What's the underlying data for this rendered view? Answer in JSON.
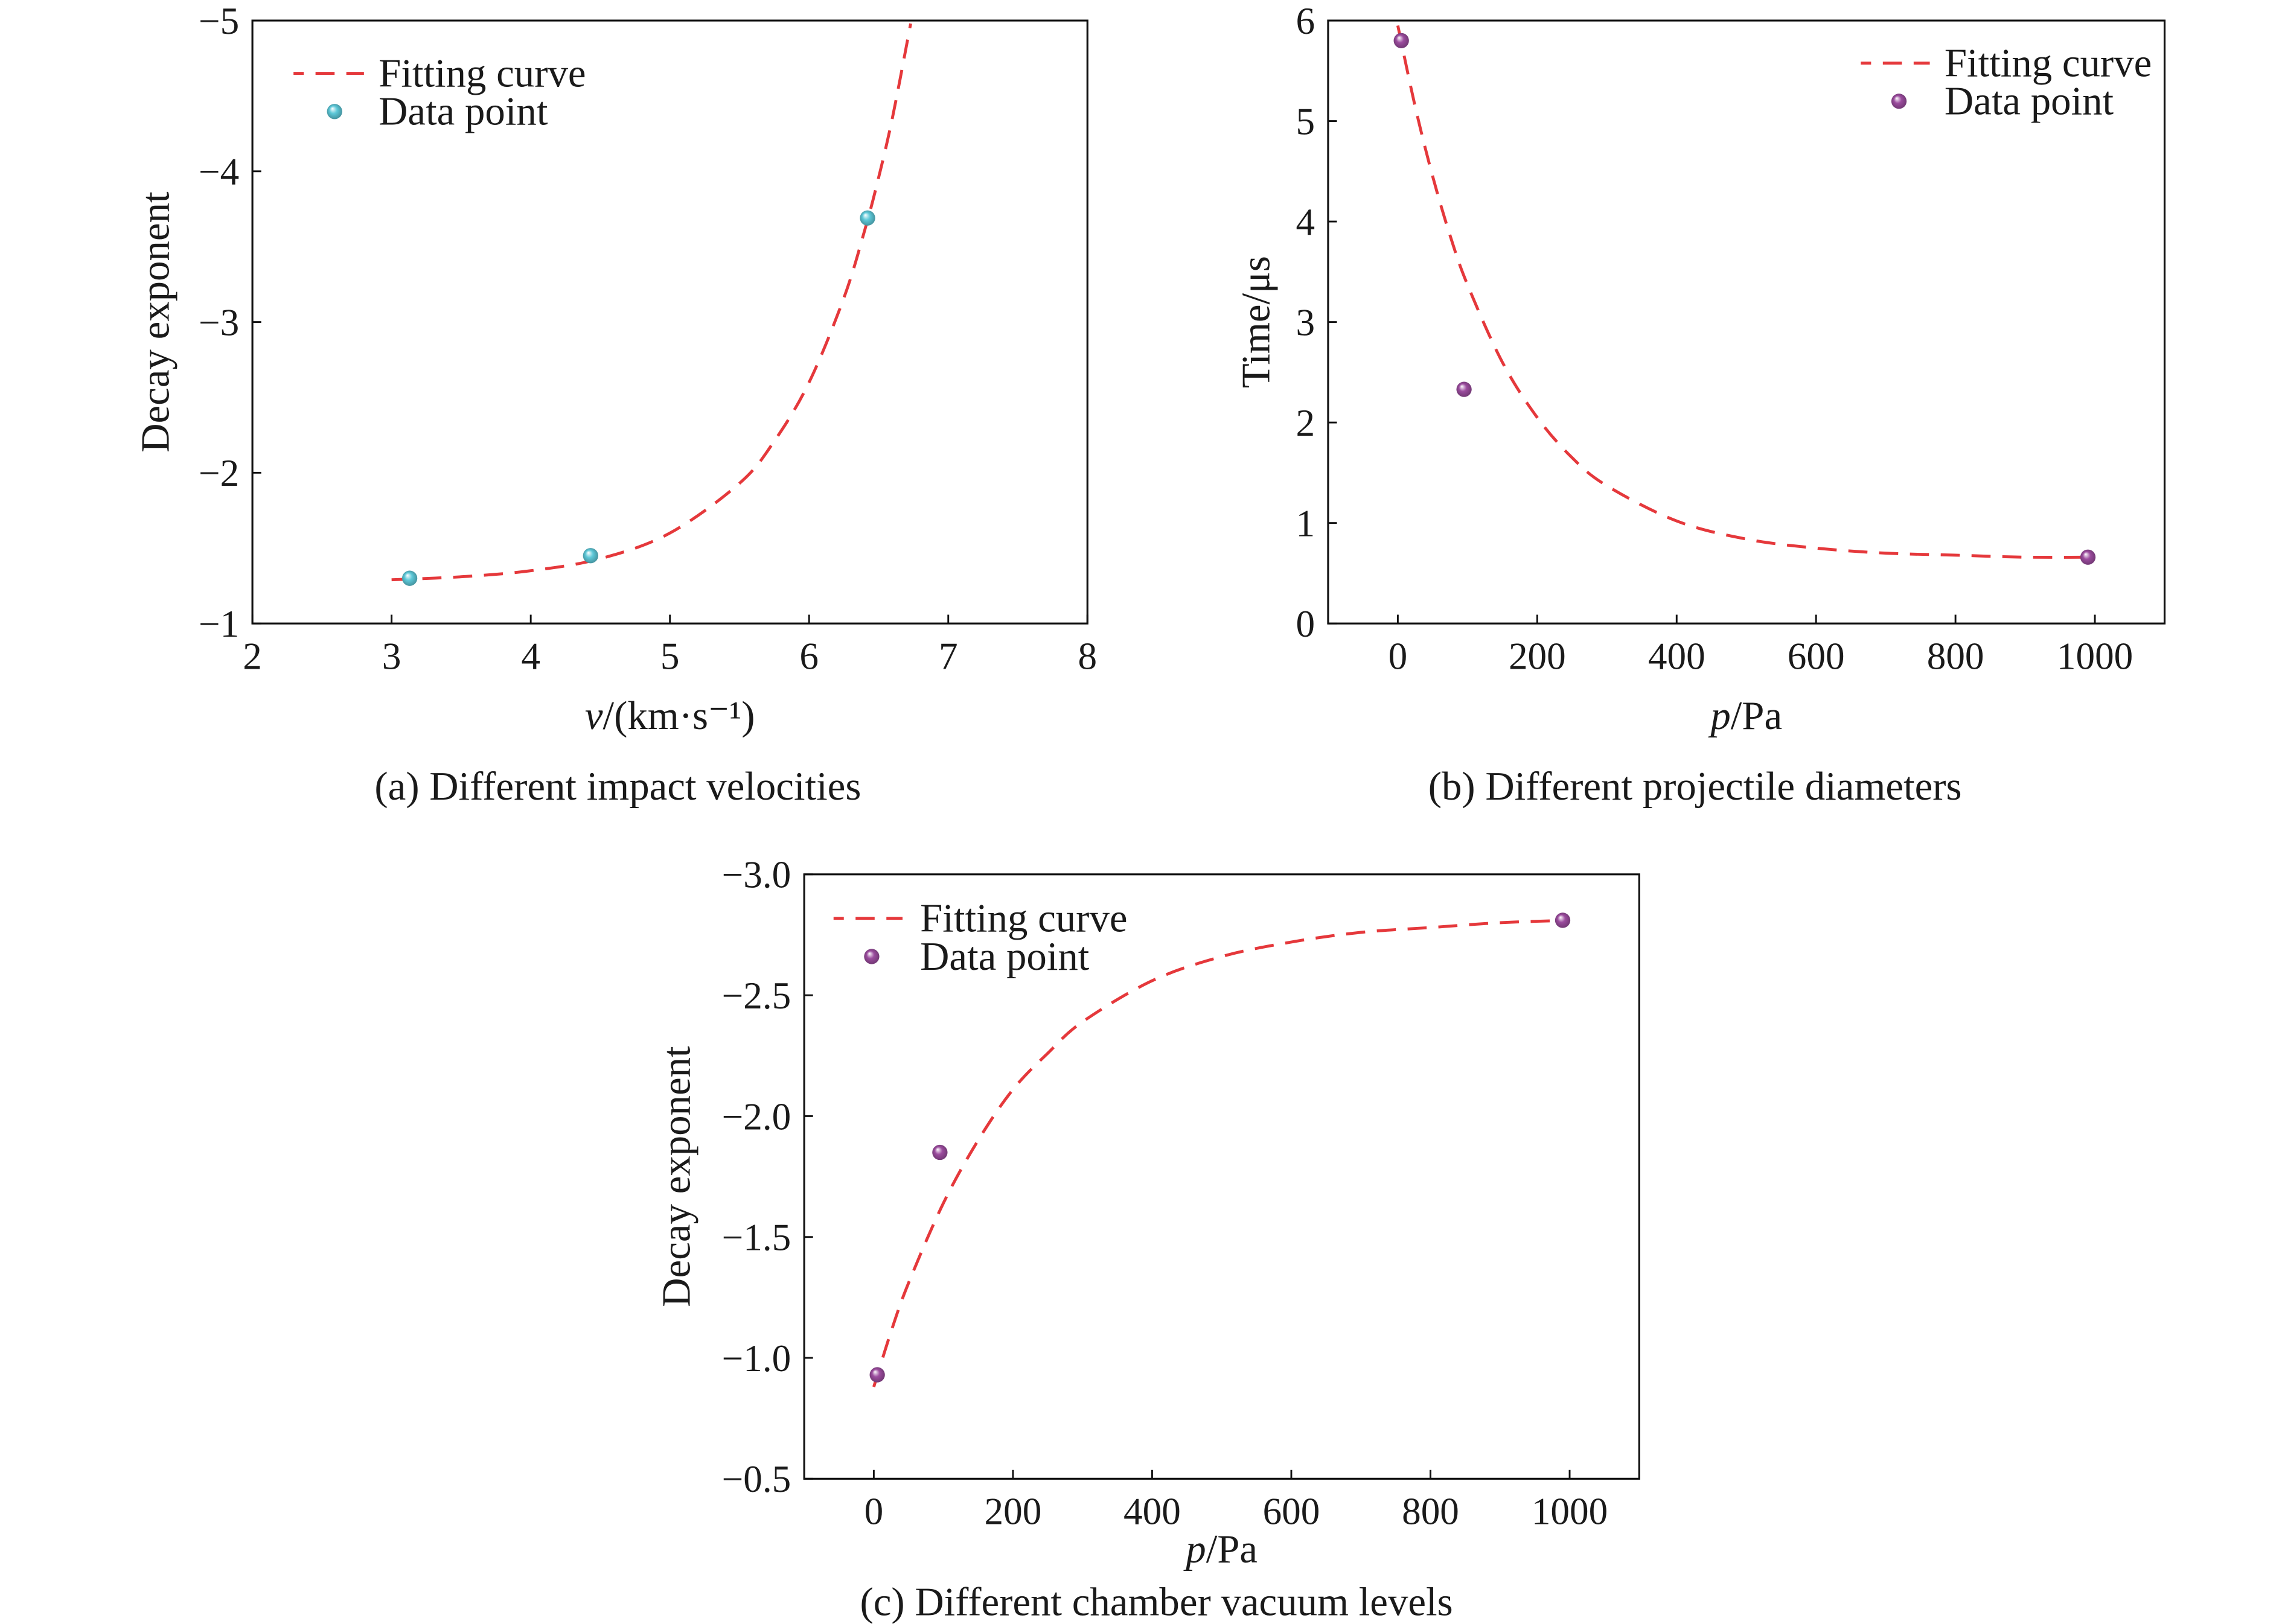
{
  "chart_data": [
    {
      "type": "scatter",
      "caption": "(a) Different impact velocities",
      "xlabel": {
        "italic": "v",
        "rest": "/(km·s⁻¹)"
      },
      "ylabel": "Decay exponent",
      "xlim": [
        2,
        8
      ],
      "ylim": [
        -1,
        -5
      ],
      "y_inverted": true,
      "x_ticks": [
        2,
        3,
        4,
        5,
        6,
        7,
        8
      ],
      "x_tick_labels": [
        "2",
        "3",
        "4",
        "5",
        "6",
        "7",
        "8"
      ],
      "y_ticks": [
        -5,
        -4,
        -3,
        -2,
        -1
      ],
      "y_tick_labels": [
        "−5",
        "−4",
        "−3",
        "−2",
        "−1"
      ],
      "grid": false,
      "legend": "top-left",
      "series": [
        {
          "name": "Fitting curve",
          "style": "dashed-line",
          "color": "#e5383b",
          "x": [
            3.0,
            3.5,
            4.0,
            4.5,
            5.0,
            5.5,
            5.75,
            6.0,
            6.25,
            6.4,
            6.5,
            6.6,
            6.73
          ],
          "y": [
            -1.29,
            -1.31,
            -1.35,
            -1.43,
            -1.6,
            -1.93,
            -2.21,
            -2.6,
            -3.16,
            -3.61,
            -3.96,
            -4.36,
            -4.98
          ]
        },
        {
          "name": "Data point",
          "style": "marker",
          "color": "#5dc8d8",
          "x": [
            3.13,
            4.43,
            6.42
          ],
          "y": [
            -1.3,
            -1.45,
            -3.69
          ]
        }
      ]
    },
    {
      "type": "scatter",
      "caption": "(b) Different projectile diameters",
      "xlabel": {
        "italic": "p",
        "rest": "/Pa"
      },
      "ylabel": "Time/μs",
      "xlim": [
        -100,
        1100
      ],
      "ylim": [
        0,
        6
      ],
      "y_inverted": false,
      "x_ticks": [
        0,
        200,
        400,
        600,
        800,
        1000
      ],
      "x_tick_labels": [
        "0",
        "200",
        "400",
        "600",
        "800",
        "1000"
      ],
      "y_ticks": [
        0,
        1,
        2,
        3,
        4,
        5,
        6
      ],
      "y_tick_labels": [
        "0",
        "1",
        "2",
        "3",
        "4",
        "5",
        "6"
      ],
      "grid": false,
      "legend": "top-right",
      "series": [
        {
          "name": "Fitting curve",
          "style": "dashed-line",
          "color": "#e5383b",
          "x": [
            0,
            25,
            50,
            75,
            100,
            150,
            200,
            250,
            300,
            400,
            500,
            600,
            700,
            800,
            900,
            1000
          ],
          "y": [
            5.95,
            5.14,
            4.45,
            3.86,
            3.37,
            2.6,
            2.05,
            1.65,
            1.37,
            1.02,
            0.84,
            0.75,
            0.7,
            0.68,
            0.66,
            0.66
          ]
        },
        {
          "name": "Data point",
          "style": "marker",
          "color": "#9b4c9e",
          "x": [
            5,
            95,
            990
          ],
          "y": [
            5.8,
            2.33,
            0.66
          ]
        }
      ]
    },
    {
      "type": "scatter",
      "caption": "(c) Different chamber vacuum levels",
      "xlabel": {
        "italic": "p",
        "rest": "/Pa"
      },
      "ylabel": "Decay exponent",
      "xlim": [
        -100,
        1100
      ],
      "ylim": [
        -0.5,
        -3.0
      ],
      "y_inverted": true,
      "x_ticks": [
        0,
        200,
        400,
        600,
        800,
        1000
      ],
      "x_tick_labels": [
        "0",
        "200",
        "400",
        "600",
        "800",
        "1000"
      ],
      "y_ticks": [
        -3.0,
        -2.5,
        -2.0,
        -1.5,
        -1.0,
        -0.5
      ],
      "y_tick_labels": [
        "−3.0",
        "−2.5",
        "−2.0",
        "−1.5",
        "−1.0",
        "−0.5"
      ],
      "grid": false,
      "legend": "top-left",
      "series": [
        {
          "name": "Fitting curve",
          "style": "dashed-line",
          "color": "#e5383b",
          "x": [
            0,
            25,
            50,
            100,
            150,
            200,
            250,
            300,
            400,
            500,
            600,
            700,
            800,
            900,
            1000
          ],
          "y": [
            -0.88,
            -1.11,
            -1.31,
            -1.64,
            -1.9,
            -2.11,
            -2.26,
            -2.39,
            -2.56,
            -2.66,
            -2.72,
            -2.76,
            -2.78,
            -2.8,
            -2.81
          ]
        },
        {
          "name": "Data point",
          "style": "marker",
          "color": "#9b4c9e",
          "x": [
            5,
            95,
            990
          ],
          "y": [
            -0.93,
            -1.85,
            -2.81
          ]
        }
      ]
    }
  ]
}
